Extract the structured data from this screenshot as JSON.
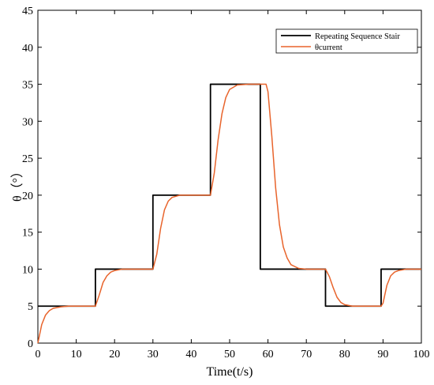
{
  "chart_data": {
    "type": "line",
    "xlabel": "Time(t/s)",
    "ylabel": "θ（°）",
    "xlim": [
      0,
      100
    ],
    "ylim": [
      0,
      45
    ],
    "x_ticks": [
      0,
      10,
      20,
      30,
      40,
      50,
      60,
      70,
      80,
      90,
      100
    ],
    "y_ticks": [
      0,
      5,
      10,
      15,
      20,
      25,
      30,
      35,
      40,
      45
    ],
    "grid": false,
    "legend_position": "top-right",
    "series": [
      {
        "name": "Repeating Sequence Stair",
        "color": "#000000",
        "x": [
          0,
          15,
          15,
          30,
          30,
          45,
          45,
          58,
          58,
          75,
          75,
          89.5,
          89.5,
          100
        ],
        "y": [
          5,
          5,
          10,
          10,
          20,
          20,
          35,
          35,
          10,
          10,
          5,
          5,
          10,
          10
        ]
      },
      {
        "name": "θcurrent",
        "color": "#e8642c",
        "x": [
          0,
          1,
          2,
          3,
          4,
          6,
          8,
          10,
          15,
          16,
          17,
          18,
          19,
          20,
          22,
          25,
          30,
          31,
          32,
          33,
          34,
          35,
          37,
          40,
          45,
          46,
          47,
          48,
          49,
          50,
          52,
          55,
          58,
          59.5,
          60,
          61,
          62,
          63,
          64,
          65,
          66,
          68,
          70,
          75,
          76,
          77,
          78,
          79,
          80,
          82,
          85,
          89.5,
          90,
          91,
          92,
          93,
          94,
          96,
          100
        ],
        "y": [
          0,
          2.5,
          3.8,
          4.4,
          4.7,
          4.9,
          5,
          5,
          5,
          6.5,
          8.2,
          9.1,
          9.6,
          9.8,
          10,
          10,
          10,
          12,
          15.5,
          18,
          19.2,
          19.7,
          20,
          20,
          20,
          23,
          27.5,
          31,
          33.2,
          34.3,
          34.9,
          35,
          35,
          35,
          34,
          28,
          21,
          16,
          13,
          11.5,
          10.6,
          10.1,
          10,
          10,
          9,
          7.5,
          6.2,
          5.5,
          5.2,
          5,
          5,
          5,
          5.4,
          7.8,
          9.1,
          9.6,
          9.8,
          10,
          10
        ]
      }
    ]
  }
}
